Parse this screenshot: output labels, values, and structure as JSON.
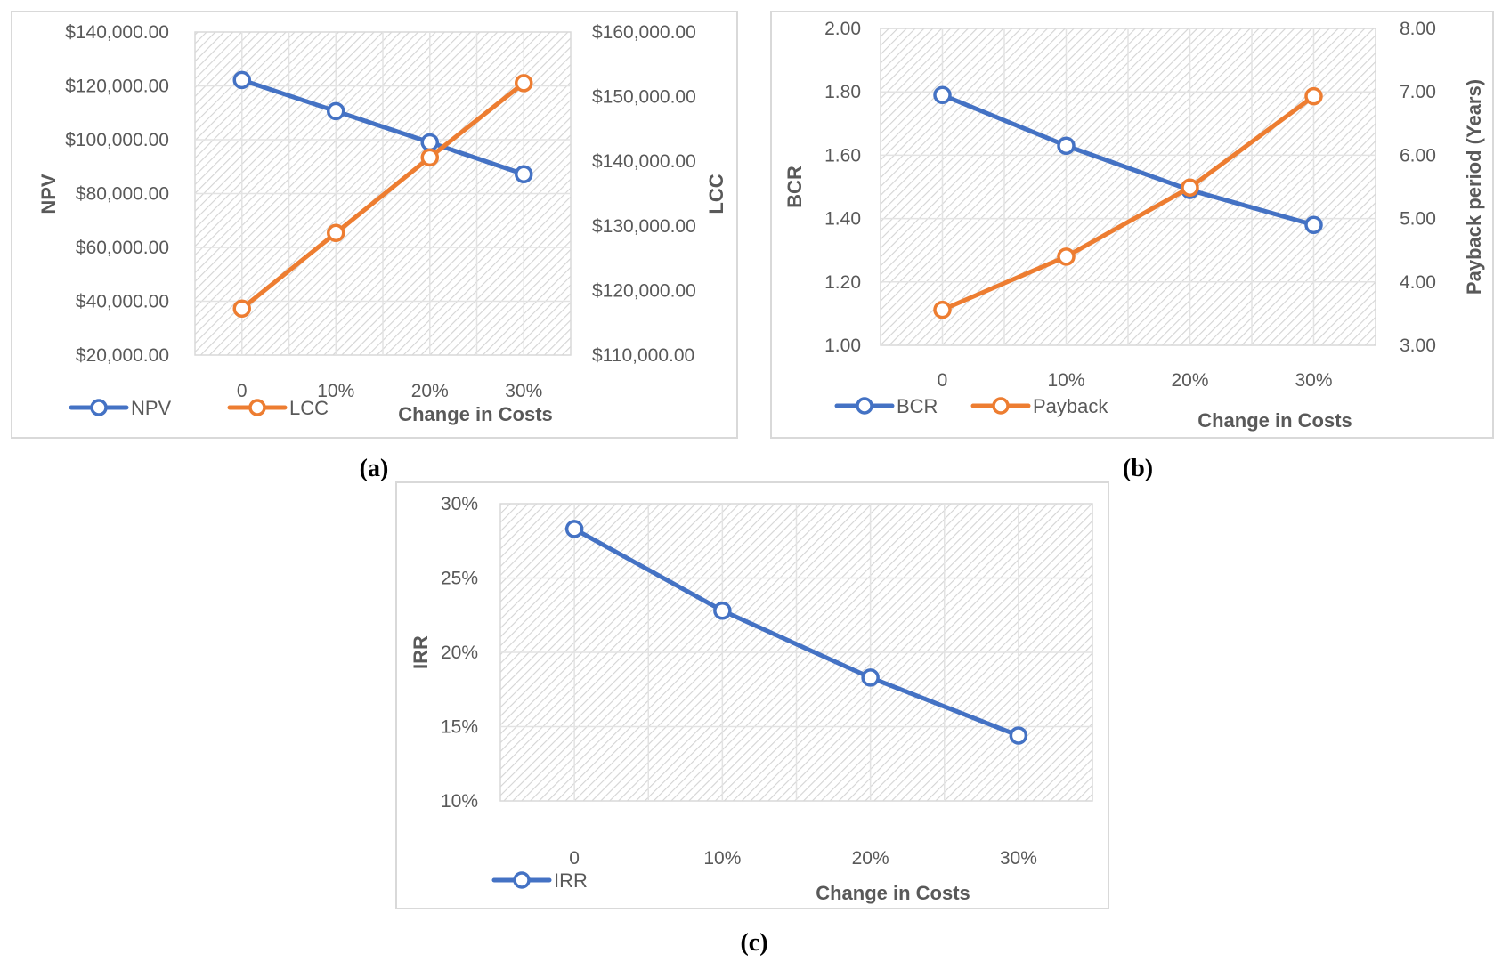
{
  "chart_data": [
    {
      "id": "a",
      "type": "line",
      "caption": "(a)",
      "title": "",
      "xlabel": "Change in Costs",
      "categories": [
        "0",
        "10%",
        "20%",
        "30%"
      ],
      "ylabel": "NPV",
      "ylim": [
        20000,
        140000
      ],
      "ytick_step": 20000,
      "yticks": [
        "$20,000.00",
        "$40,000.00",
        "$60,000.00",
        "$80,000.00",
        "$100,000.00",
        "$120,000.00",
        "$140,000.00"
      ],
      "y2label": "LCC",
      "y2lim": [
        110000,
        160000
      ],
      "y2tick_step": 10000,
      "y2ticks": [
        "$110,000.00",
        "$120,000.00",
        "$130,000.00",
        "$140,000.00",
        "$150,000.00",
        "$160,000.00"
      ],
      "grid": true,
      "legend_position": "bottom-left",
      "series": [
        {
          "name": "NPV",
          "axis": "left",
          "color": "#4472C4",
          "values": [
            122200,
            110600,
            99000,
            87200
          ]
        },
        {
          "name": "LCC",
          "axis": "right",
          "color": "#ED7D31",
          "values": [
            117200,
            128900,
            140600,
            152100
          ]
        }
      ]
    },
    {
      "id": "b",
      "type": "line",
      "caption": "(b)",
      "title": "",
      "xlabel": "Change in Costs",
      "categories": [
        "0",
        "10%",
        "20%",
        "30%"
      ],
      "ylabel": "BCR",
      "ylim": [
        1.0,
        2.0
      ],
      "ytick_step": 0.2,
      "yticks": [
        "1.00",
        "1.20",
        "1.40",
        "1.60",
        "1.80",
        "2.00"
      ],
      "y2label": "Payback period (Years)",
      "y2lim": [
        3.0,
        8.0
      ],
      "y2tick_step": 1.0,
      "y2ticks": [
        "3.00",
        "4.00",
        "5.00",
        "6.00",
        "7.00",
        "8.00"
      ],
      "grid": true,
      "legend_position": "bottom-left",
      "series": [
        {
          "name": "BCR",
          "axis": "left",
          "color": "#4472C4",
          "values": [
            1.79,
            1.63,
            1.49,
            1.38
          ]
        },
        {
          "name": "Payback",
          "axis": "right",
          "color": "#ED7D31",
          "values": [
            3.56,
            4.4,
            5.49,
            6.93
          ]
        }
      ]
    },
    {
      "id": "c",
      "type": "line",
      "caption": "(c)",
      "title": "",
      "xlabel": "Change in Costs",
      "categories": [
        "0",
        "10%",
        "20%",
        "30%"
      ],
      "ylabel": "IRR",
      "ylim": [
        10,
        30
      ],
      "ytick_step": 5,
      "yticks": [
        "10%",
        "15%",
        "20%",
        "25%",
        "30%"
      ],
      "grid": true,
      "legend_position": "bottom-left",
      "series": [
        {
          "name": "IRR",
          "axis": "left",
          "color": "#4472C4",
          "values": [
            28.3,
            22.8,
            18.3,
            14.4
          ]
        }
      ]
    }
  ]
}
